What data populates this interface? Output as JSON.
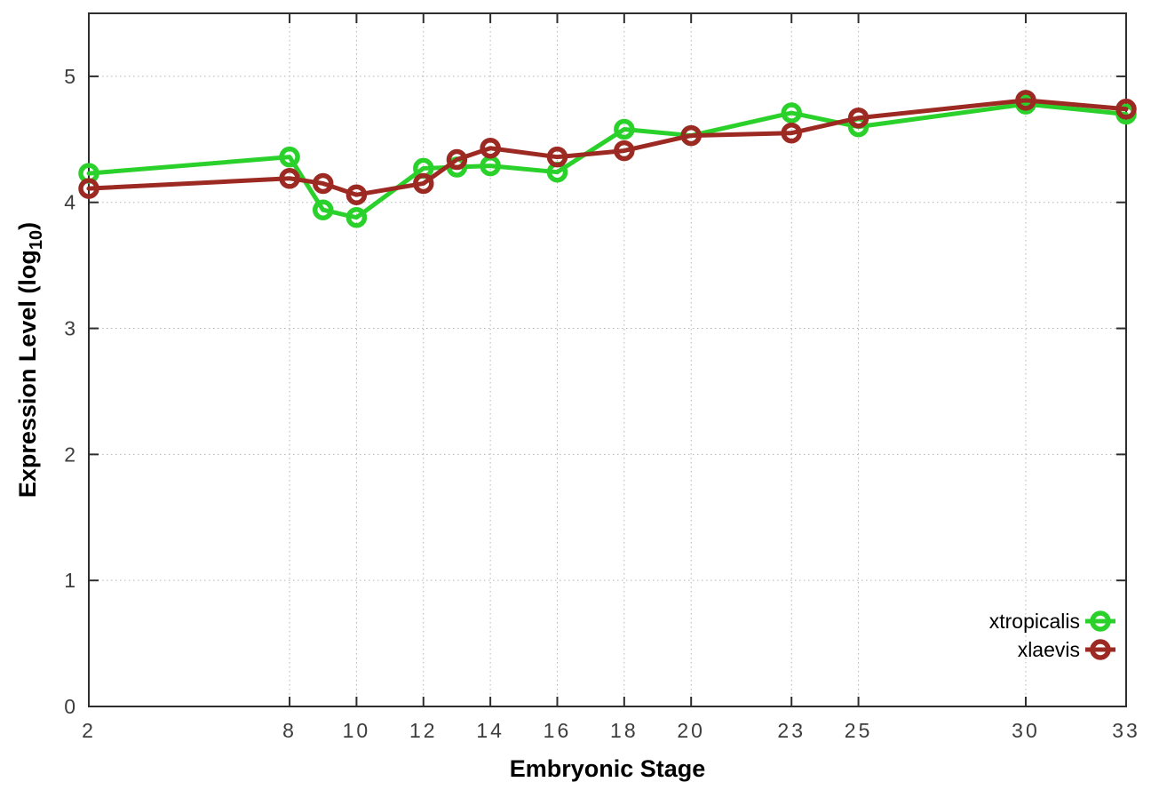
{
  "chart_data": {
    "type": "line",
    "title": "",
    "xlabel": "Embryonic Stage",
    "ylabel": "Expression Level (log10)",
    "ylabel_rich": {
      "pre": "Expression Level (log",
      "sub": "10",
      "post": ")"
    },
    "xlim": [
      2,
      33
    ],
    "ylim": [
      0,
      5.5
    ],
    "x_ticks": [
      2,
      8,
      10,
      12,
      14,
      16,
      18,
      20,
      23,
      25,
      30,
      33
    ],
    "x_tick_labels": [
      "2",
      "8",
      "10",
      "12",
      "14",
      "16",
      "18",
      "20",
      "23",
      "25",
      "30",
      "33"
    ],
    "y_ticks": [
      0,
      1,
      2,
      3,
      4,
      5
    ],
    "y_tick_labels": [
      "0",
      "1",
      "2",
      "3",
      "4",
      "5"
    ],
    "grid": true,
    "legend_position": "inside-right",
    "x": [
      2,
      8,
      9,
      10,
      12,
      13,
      14,
      16,
      18,
      20,
      23,
      25,
      30,
      33
    ],
    "series": [
      {
        "name": "xtropicalis",
        "color": "#2bd12b",
        "values": [
          4.23,
          4.36,
          3.94,
          3.88,
          4.27,
          4.28,
          4.29,
          4.24,
          4.58,
          4.53,
          4.71,
          4.6,
          4.78,
          4.7
        ]
      },
      {
        "name": "xlaevis",
        "color": "#9c2a23",
        "values": [
          4.11,
          4.19,
          4.15,
          4.06,
          4.15,
          4.34,
          4.43,
          4.36,
          4.41,
          4.53,
          4.55,
          4.67,
          4.81,
          4.74
        ]
      }
    ]
  },
  "style": {
    "background": "#ffffff",
    "border_color": "#2e2e2e",
    "grid_color": "#b4b4b4",
    "tick_label_color": "#3d3d3d"
  }
}
